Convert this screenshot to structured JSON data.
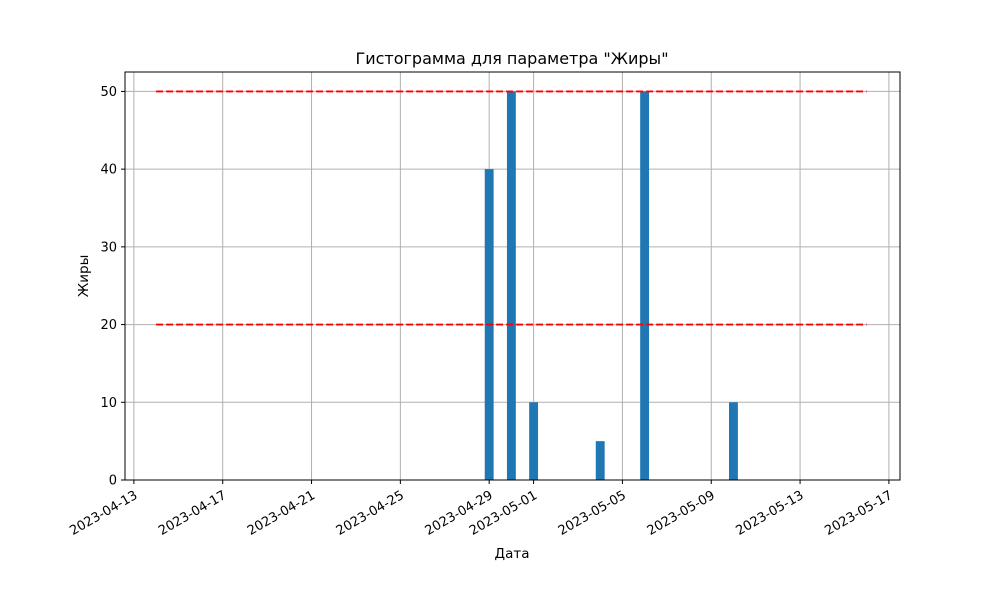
{
  "chart_data": {
    "type": "bar",
    "title": "Гистограмма для параметра \"Жиры\"",
    "xlabel": "Дата",
    "ylabel": "Жиры",
    "x_tick_labels": [
      "2023-04-13",
      "2023-04-17",
      "2023-04-21",
      "2023-04-25",
      "2023-04-29",
      "2023-05-01",
      "2023-05-05",
      "2023-05-09",
      "2023-05-13",
      "2023-05-17"
    ],
    "y_ticks": [
      0,
      10,
      20,
      30,
      40,
      50
    ],
    "ylim": [
      0,
      52.5
    ],
    "xlim": [
      "2023-04-12",
      "2023-05-17"
    ],
    "grid": true,
    "bars": [
      {
        "date": "2023-04-29",
        "value": 40
      },
      {
        "date": "2023-04-30",
        "value": 50
      },
      {
        "date": "2023-05-01",
        "value": 10
      },
      {
        "date": "2023-05-04",
        "value": 5
      },
      {
        "date": "2023-05-06",
        "value": 50
      },
      {
        "date": "2023-05-10",
        "value": 10
      }
    ],
    "reference_lines": [
      {
        "y": 50,
        "from": "2023-04-14",
        "to": "2023-05-16",
        "style": "dashed"
      },
      {
        "y": 20,
        "from": "2023-04-14",
        "to": "2023-05-16",
        "style": "dashed"
      }
    ],
    "bar_color": "#1f77b4",
    "reference_color": "#ff0000",
    "grid_color": "#b0b0b0"
  }
}
